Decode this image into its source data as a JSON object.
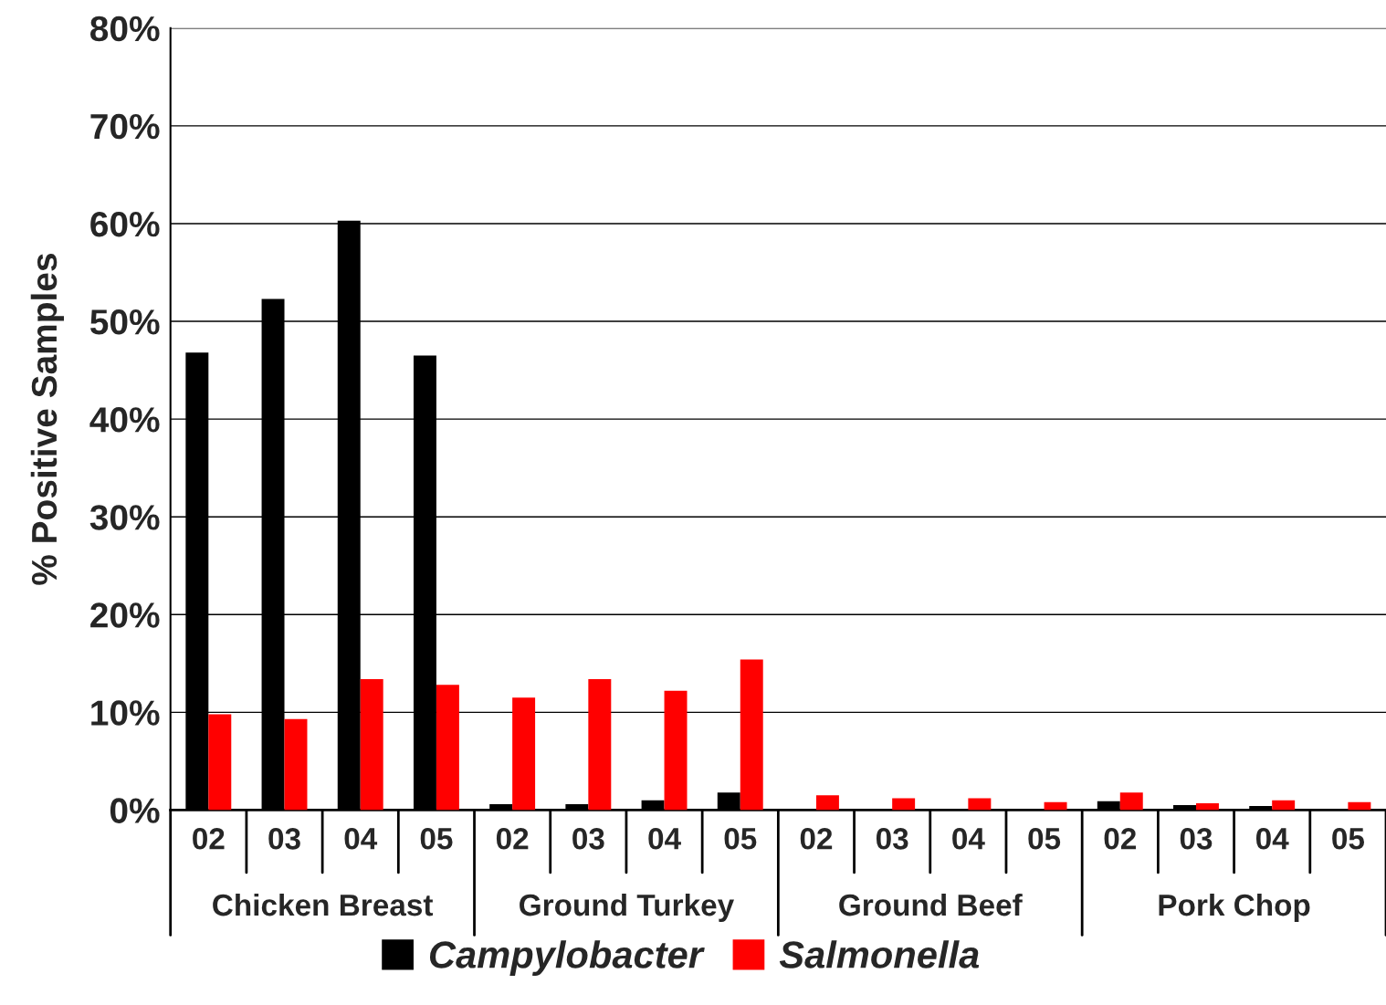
{
  "chart_data": {
    "type": "bar",
    "ylabel": "% Positive Samples",
    "categories": [
      "02",
      "03",
      "04",
      "05",
      "02",
      "03",
      "04",
      "05",
      "02",
      "03",
      "04",
      "05",
      "02",
      "03",
      "04",
      "05"
    ],
    "annotations": [
      "Chicken Breast",
      "Ground Turkey",
      "Ground Beef",
      "Pork Chop"
    ],
    "series": [
      {
        "name": "Campylobacter",
        "color": "#000000",
        "values": [
          46.8,
          52.3,
          60.3,
          46.5,
          0.6,
          0.6,
          1.0,
          1.8,
          null,
          null,
          null,
          null,
          0.9,
          0.5,
          0.4,
          0.1
        ]
      },
      {
        "name": "Salmonella",
        "color": "#ff0000",
        "values": [
          9.8,
          9.3,
          13.4,
          12.8,
          11.5,
          13.4,
          12.2,
          15.4,
          1.5,
          1.2,
          1.2,
          0.8,
          1.8,
          0.7,
          1.0,
          0.8
        ]
      }
    ],
    "ylim": [
      0,
      80
    ],
    "yticks": [
      {
        "value": 0,
        "label": "0%"
      },
      {
        "value": 10,
        "label": "10%"
      },
      {
        "value": 20,
        "label": "20%"
      },
      {
        "value": 30,
        "label": "30%"
      },
      {
        "value": 40,
        "label": "40%"
      },
      {
        "value": 50,
        "label": "50%"
      },
      {
        "value": 60,
        "label": "60%"
      },
      {
        "value": 70,
        "label": "70%"
      },
      {
        "value": 80,
        "label": "80%"
      }
    ],
    "grid": "y",
    "legend": "bottom"
  }
}
